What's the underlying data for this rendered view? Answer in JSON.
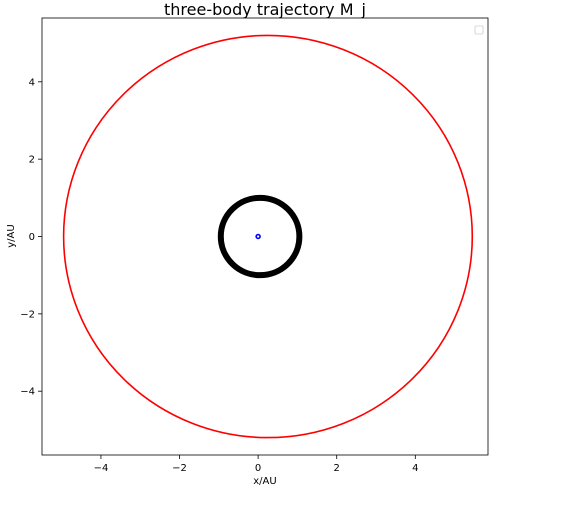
{
  "chart_data": {
    "type": "scatter",
    "title": "three-body trajectory M_j",
    "xlabel": "x/AU",
    "ylabel": "y/AU",
    "xlim": [
      -5.5,
      5.85
    ],
    "ylim": [
      -5.65,
      5.65
    ],
    "xticks": [
      -4,
      -2,
      0,
      2,
      4
    ],
    "yticks": [
      -4,
      -2,
      0,
      2,
      4
    ],
    "xtick_labels": [
      "−4",
      "−2",
      "0",
      "2",
      "4"
    ],
    "ytick_labels": [
      "−4",
      "−2",
      "0",
      "2",
      "4"
    ],
    "grid": false,
    "legend": {
      "position": "top-right",
      "entries": []
    },
    "series": [
      {
        "kind": "orbit",
        "color": "#ff0000",
        "center": [
          0.25,
          0.0
        ],
        "rx": 5.2,
        "ry": 5.2,
        "linewidth": "thin"
      },
      {
        "kind": "orbit",
        "color": "#000000",
        "center": [
          0.05,
          0.0
        ],
        "rx": 1.0,
        "ry": 1.0,
        "linewidth": "thick"
      },
      {
        "kind": "orbit",
        "color": "#0000ff",
        "center": [
          0.0,
          0.0
        ],
        "rx": 0.05,
        "ry": 0.05,
        "linewidth": "thin"
      }
    ]
  }
}
